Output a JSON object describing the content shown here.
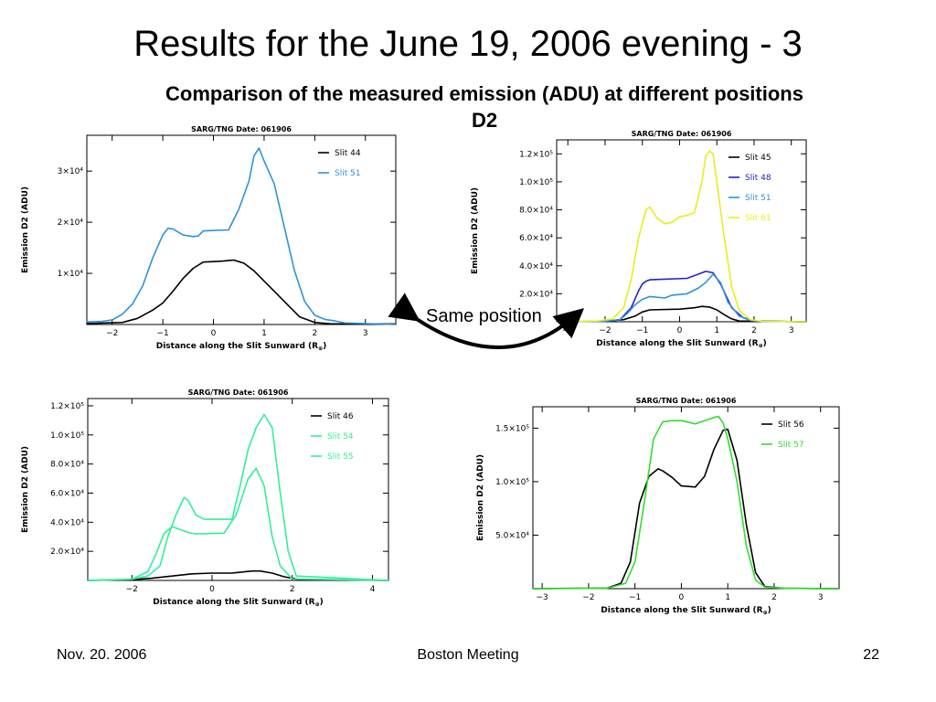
{
  "slide": {
    "title": "Results for the June 19, 2006 evening - 3",
    "subtitle_line1": "Comparison of the measured emission (ADU) at different positions",
    "subtitle_line2": "D2",
    "annotation": "Same position",
    "footer_date": "Nov. 20. 2006",
    "footer_meeting": "Boston Meeting",
    "footer_page": "22"
  },
  "chart_data": [
    {
      "type": "line",
      "title": "SARG/TNG Date: 061906",
      "xlabel": "Distance along the Slit Sunward (R",
      "xlabel_sub": "⊕",
      "xlabel_close": ")",
      "ylabel": "Emission D2 (ADU)",
      "xlim": [
        -2.5,
        3.6
      ],
      "ylim": [
        0,
        37000
      ],
      "xticks": [
        {
          "v": -2,
          "label": "−2"
        },
        {
          "v": -1,
          "label": "−1"
        },
        {
          "v": 0,
          "label": "0"
        },
        {
          "v": 1,
          "label": "1"
        },
        {
          "v": 2,
          "label": "2"
        },
        {
          "v": 3,
          "label": "3"
        }
      ],
      "yticks": [
        {
          "v": 10000,
          "label": "1×10⁴"
        },
        {
          "v": 20000,
          "label": "2×10⁴"
        },
        {
          "v": 30000,
          "label": "3×10⁴"
        }
      ],
      "series": [
        {
          "name": "Slit 44",
          "color": "#000000",
          "x": [
            -2.5,
            -1.8,
            -1.5,
            -1.2,
            -1.0,
            -0.8,
            -0.6,
            -0.4,
            -0.2,
            0.0,
            0.2,
            0.4,
            0.5,
            0.6,
            0.8,
            1.0,
            1.2,
            1.5,
            1.7,
            2.0,
            2.3,
            3.6
          ],
          "y": [
            200,
            400,
            1200,
            2800,
            4200,
            6500,
            9000,
            11000,
            12200,
            12300,
            12400,
            12600,
            12300,
            12000,
            10500,
            8500,
            6500,
            3500,
            1500,
            400,
            150,
            100
          ]
        },
        {
          "name": "Slit 51",
          "color": "#2e93d9",
          "x": [
            -2.5,
            -2.2,
            -2.0,
            -1.8,
            -1.6,
            -1.4,
            -1.2,
            -1.0,
            -0.9,
            -0.8,
            -0.6,
            -0.4,
            -0.3,
            -0.2,
            0.3,
            0.5,
            0.7,
            0.8,
            0.9,
            1.0,
            1.2,
            1.4,
            1.6,
            1.8,
            2.0,
            2.2,
            2.4,
            2.6,
            3.6
          ],
          "y": [
            500,
            600,
            900,
            2000,
            4000,
            7500,
            13000,
            17500,
            18800,
            18700,
            17500,
            17200,
            17300,
            18300,
            18500,
            22500,
            28000,
            33000,
            34500,
            32000,
            27500,
            19000,
            10500,
            4500,
            1800,
            1000,
            700,
            300,
            0
          ]
        }
      ]
    },
    {
      "type": "line",
      "title": "SARG/TNG Date: 061906",
      "xlabel": "Distance along the Slit Sunward (R",
      "xlabel_sub": "⊕",
      "xlabel_close": ")",
      "ylabel": "Emission D2 (ADU)",
      "xlim": [
        -3.3,
        3.4
      ],
      "ylim": [
        0,
        130000
      ],
      "xticks": [
        {
          "v": -3,
          "label": "−3"
        },
        {
          "v": -2,
          "label": "−2"
        },
        {
          "v": -1,
          "label": "−1"
        },
        {
          "v": 0,
          "label": "0"
        },
        {
          "v": 1,
          "label": "1"
        },
        {
          "v": 2,
          "label": "2"
        },
        {
          "v": 3,
          "label": "3"
        }
      ],
      "yticks": [
        {
          "v": 20000,
          "label": "2.0×10⁴"
        },
        {
          "v": 40000,
          "label": "4.0×10⁴"
        },
        {
          "v": 60000,
          "label": "6.0×10⁴"
        },
        {
          "v": 80000,
          "label": "8.0×10⁴"
        },
        {
          "v": 100000,
          "label": "1.0×10⁵"
        },
        {
          "v": 120000,
          "label": "1.2×10⁵"
        }
      ],
      "series": [
        {
          "name": "Slit 45",
          "color": "#000000",
          "x": [
            -3.3,
            -2.0,
            -1.5,
            -1.2,
            -1.0,
            -0.8,
            0.0,
            0.4,
            0.6,
            0.8,
            1.0,
            1.2,
            1.4,
            1.6,
            3.4
          ],
          "y": [
            0,
            300,
            1500,
            4000,
            7000,
            8500,
            9000,
            10000,
            11000,
            10500,
            8500,
            5000,
            2000,
            500,
            0
          ]
        },
        {
          "name": "Slit 48",
          "color": "#2222cc",
          "x": [
            -3.3,
            -2.0,
            -1.6,
            -1.3,
            -1.1,
            -1.0,
            -0.9,
            -0.8,
            0.2,
            0.5,
            0.7,
            0.9,
            1.1,
            1.4,
            1.7,
            2.0,
            3.4
          ],
          "y": [
            0,
            300,
            1500,
            10000,
            22000,
            27000,
            29000,
            30000,
            31000,
            34000,
            36000,
            35000,
            27000,
            10000,
            3000,
            500,
            0
          ]
        },
        {
          "name": "Slit 51",
          "color": "#2e93d9",
          "x": [
            -3.3,
            -2.0,
            -1.6,
            -1.4,
            -1.2,
            -1.0,
            -0.8,
            -0.4,
            -0.2,
            0.2,
            0.5,
            0.7,
            0.9,
            1.1,
            1.3,
            1.6,
            1.9,
            2.2,
            3.4
          ],
          "y": [
            0,
            300,
            1500,
            6000,
            12000,
            16000,
            18000,
            17000,
            19000,
            20000,
            24000,
            28000,
            34000,
            28000,
            14000,
            4000,
            1000,
            300,
            0
          ]
        },
        {
          "name": "Slit 61",
          "color": "#e8ee1c",
          "x": [
            -3.3,
            -2.2,
            -1.8,
            -1.5,
            -1.3,
            -1.1,
            -0.9,
            -0.8,
            -0.6,
            -0.4,
            -0.2,
            0.0,
            0.1,
            0.2,
            0.4,
            0.6,
            0.7,
            0.8,
            0.9,
            1.0,
            1.2,
            1.4,
            1.6,
            1.9,
            2.2,
            3.4
          ],
          "y": [
            0,
            500,
            2000,
            10000,
            30000,
            60000,
            80000,
            82000,
            74000,
            70000,
            71000,
            75000,
            75500,
            76000,
            78000,
            100000,
            118000,
            122000,
            120000,
            100000,
            60000,
            25000,
            8000,
            1500,
            300,
            0
          ]
        }
      ]
    },
    {
      "type": "line",
      "title": "SARG/TNG Date: 061906",
      "xlabel": "Distance along the Slit Sunward (R",
      "xlabel_sub": "⊕",
      "xlabel_close": ")",
      "ylabel": "Emission D2 (ADU)",
      "xlim": [
        -3.1,
        4.4
      ],
      "ylim": [
        0,
        125000
      ],
      "xticks": [
        {
          "v": -2,
          "label": "−2"
        },
        {
          "v": 0,
          "label": "0"
        },
        {
          "v": 2,
          "label": "2"
        },
        {
          "v": 4,
          "label": "4"
        }
      ],
      "yticks": [
        {
          "v": 20000,
          "label": "2.0×10⁴"
        },
        {
          "v": 40000,
          "label": "4.0×10⁴"
        },
        {
          "v": 60000,
          "label": "6.0×10⁴"
        },
        {
          "v": 80000,
          "label": "8.0×10⁴"
        },
        {
          "v": 100000,
          "label": "1.0×10⁵"
        },
        {
          "v": 120000,
          "label": "1.2×10⁵"
        }
      ],
      "series": [
        {
          "name": "Slit 46",
          "color": "#000000",
          "x": [
            -3.1,
            -2.0,
            -1.5,
            -1.0,
            -0.5,
            0.0,
            0.5,
            1.0,
            1.2,
            1.5,
            1.8,
            2.2,
            4.4
          ],
          "y": [
            0,
            500,
            1500,
            3000,
            4500,
            5000,
            5000,
            6500,
            6500,
            5000,
            2500,
            500,
            0
          ]
        },
        {
          "name": "Slit 54",
          "color": "#33ee99",
          "x": [
            -3.1,
            -2.0,
            -1.6,
            -1.3,
            -1.1,
            -0.9,
            -0.7,
            -0.6,
            -0.4,
            -0.2,
            0.5,
            0.7,
            0.9,
            1.1,
            1.3,
            1.5,
            1.7,
            1.9,
            2.1,
            4.4
          ],
          "y": [
            0,
            800,
            3000,
            10000,
            30000,
            45000,
            57000,
            55000,
            45000,
            42000,
            42000,
            65000,
            90000,
            105000,
            114000,
            105000,
            60000,
            20000,
            3000,
            0
          ]
        },
        {
          "name": "Slit 55",
          "color": "#33ee99",
          "x": [
            -3.1,
            -2.0,
            -1.6,
            -1.4,
            -1.2,
            -1.0,
            -0.8,
            -0.6,
            -0.4,
            0.3,
            0.6,
            0.9,
            1.1,
            1.3,
            1.5,
            1.7,
            2.0,
            4.4
          ],
          "y": [
            0,
            800,
            6000,
            18000,
            32000,
            37000,
            35000,
            33000,
            32000,
            32500,
            45000,
            70000,
            77000,
            65000,
            30000,
            10000,
            1000,
            0
          ]
        }
      ]
    },
    {
      "type": "line",
      "title": "SARG/TNG Date: 061906",
      "xlabel": "Distance along the Slit Sunward (R",
      "xlabel_sub": "⊕",
      "xlabel_close": ")",
      "ylabel": "Emission D2 (ADU)",
      "xlim": [
        -3.2,
        3.4
      ],
      "ylim": [
        0,
        170000
      ],
      "xticks": [
        {
          "v": -3,
          "label": "−3"
        },
        {
          "v": -2,
          "label": "−2"
        },
        {
          "v": -1,
          "label": "−1"
        },
        {
          "v": 0,
          "label": "0"
        },
        {
          "v": 1,
          "label": "1"
        },
        {
          "v": 2,
          "label": "2"
        },
        {
          "v": 3,
          "label": "3"
        }
      ],
      "yticks": [
        {
          "v": 50000,
          "label": "5.0×10⁴"
        },
        {
          "v": 100000,
          "label": "1.0×10⁵"
        },
        {
          "v": 150000,
          "label": "1.5×10⁵"
        }
      ],
      "series": [
        {
          "name": "Slit 56",
          "color": "#000000",
          "x": [
            -3.2,
            -1.6,
            -1.3,
            -1.1,
            -0.9,
            -0.7,
            -0.5,
            -0.4,
            -0.2,
            0.0,
            0.3,
            0.5,
            0.7,
            0.9,
            1.0,
            1.2,
            1.4,
            1.6,
            1.8,
            2.2,
            3.4
          ],
          "y": [
            0,
            500,
            5000,
            25000,
            80000,
            105000,
            112000,
            110000,
            104000,
            96000,
            95000,
            105000,
            130000,
            148000,
            149000,
            120000,
            60000,
            15000,
            2000,
            300,
            0
          ]
        },
        {
          "name": "Slit 57",
          "color": "#33dd33",
          "x": [
            -3.2,
            -1.6,
            -1.2,
            -1.0,
            -0.8,
            -0.6,
            -0.4,
            -0.2,
            0.0,
            0.3,
            0.5,
            0.7,
            0.8,
            0.9,
            1.0,
            1.2,
            1.4,
            1.6,
            1.8,
            2.2,
            3.4
          ],
          "y": [
            0,
            300,
            5000,
            25000,
            80000,
            140000,
            156000,
            157000,
            157000,
            154000,
            157000,
            160000,
            161000,
            155000,
            140000,
            100000,
            40000,
            8000,
            1500,
            300,
            0
          ]
        }
      ]
    }
  ]
}
